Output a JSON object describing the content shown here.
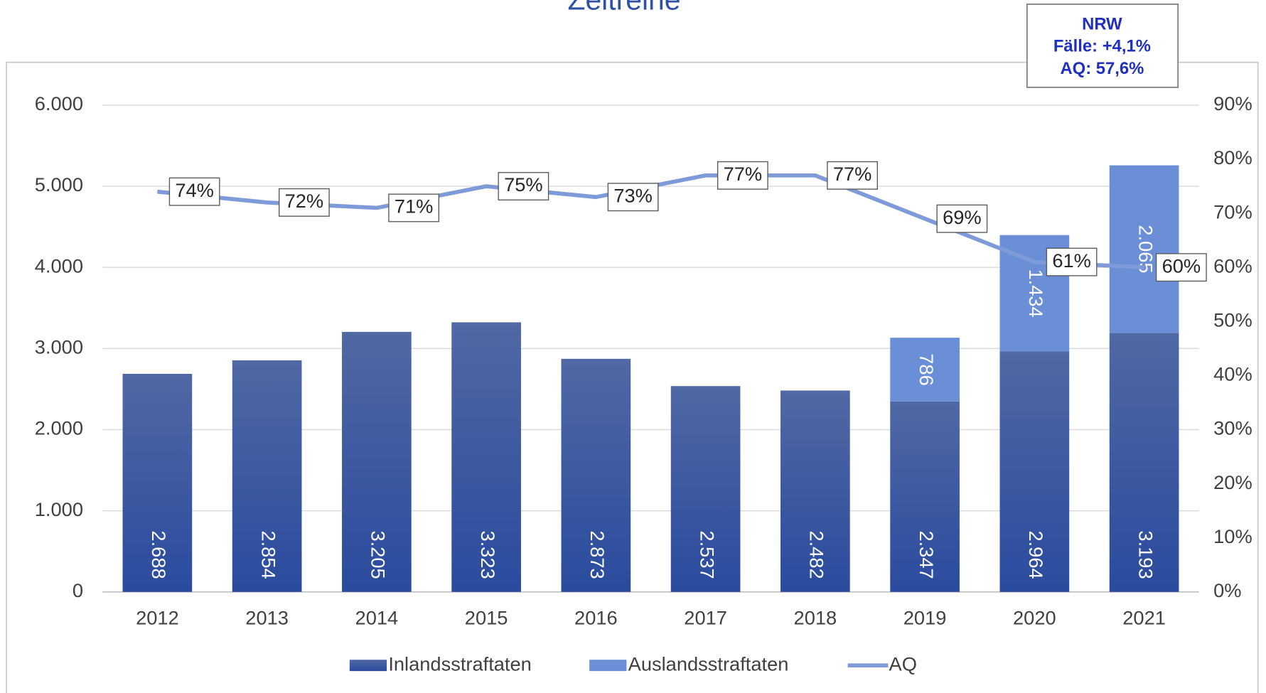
{
  "chart_data": {
    "type": "bar",
    "title": "Zeitreihe",
    "annotation": [
      "NRW",
      "Fälle: +4,1%",
      "AQ: 57,6%"
    ],
    "categories": [
      "2012",
      "2013",
      "2014",
      "2015",
      "2016",
      "2017",
      "2018",
      "2019",
      "2020",
      "2021"
    ],
    "series": [
      {
        "name": "Inlandsstraftaten",
        "color": "#3a58a2",
        "values": [
          2688,
          2854,
          3205,
          3323,
          2873,
          2537,
          2482,
          2347,
          2964,
          3193
        ],
        "value_labels": [
          "2.688",
          "2.854",
          "3.205",
          "3.323",
          "2.873",
          "2.537",
          "2.482",
          "2.347",
          "2.964",
          "3.193"
        ]
      },
      {
        "name": "Auslandsstraftaten",
        "color": "#6a8fd6",
        "values": [
          null,
          null,
          null,
          null,
          null,
          null,
          null,
          786,
          1434,
          2065
        ],
        "value_labels": [
          null,
          null,
          null,
          null,
          null,
          null,
          null,
          "786",
          "1.434",
          "2.065"
        ]
      },
      {
        "name": "AQ",
        "type": "line",
        "axis": "y2",
        "color": "#7f9ad8",
        "values": [
          74,
          72,
          71,
          75,
          73,
          77,
          77,
          69,
          61,
          60
        ],
        "value_labels": [
          "74%",
          "72%",
          "71%",
          "75%",
          "73%",
          "77%",
          "77%",
          "69%",
          "61%",
          "60%"
        ]
      }
    ],
    "ylim": [
      0,
      6000
    ],
    "yticks": [
      {
        "value": 0,
        "label": "0"
      },
      {
        "value": 1000,
        "label": "1.000"
      },
      {
        "value": 2000,
        "label": "2.000"
      },
      {
        "value": 3000,
        "label": "3.000"
      },
      {
        "value": 4000,
        "label": "4.000"
      },
      {
        "value": 5000,
        "label": "5.000"
      },
      {
        "value": 6000,
        "label": "6.000"
      }
    ],
    "y2lim": [
      0,
      90
    ],
    "y2ticks": [
      {
        "value": 0,
        "label": "0%"
      },
      {
        "value": 10,
        "label": "10%"
      },
      {
        "value": 20,
        "label": "20%"
      },
      {
        "value": 30,
        "label": "30%"
      },
      {
        "value": 40,
        "label": "40%"
      },
      {
        "value": 50,
        "label": "50%"
      },
      {
        "value": 60,
        "label": "60%"
      },
      {
        "value": 70,
        "label": "70%"
      },
      {
        "value": 80,
        "label": "80%"
      },
      {
        "value": 90,
        "label": "90%"
      }
    ],
    "grid": true,
    "legend": "bottom",
    "stacked": true
  }
}
